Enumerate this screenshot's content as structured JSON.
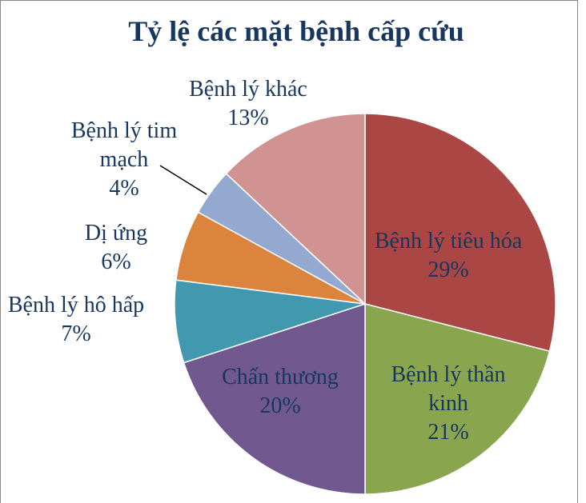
{
  "chart_data": {
    "type": "pie",
    "title": "Tỷ lệ các mặt bệnh cấp cứu",
    "categories": [
      "Bệnh lý tiêu hóa",
      "Bệnh lý thần kinh",
      "Chấn thương",
      "Bệnh lý hô hấp",
      "Dị ứng",
      "Bệnh lý tim mạch",
      "Bệnh lý khác"
    ],
    "values": [
      29,
      21,
      20,
      7,
      6,
      4,
      13
    ],
    "value_labels": [
      "29%",
      "21%",
      "20%",
      "7%",
      "6%",
      "4%",
      "13%"
    ],
    "colors": [
      "#aa4643",
      "#89a54e",
      "#71588f",
      "#4198af",
      "#db843d",
      "#93a9cf",
      "#d19392"
    ]
  }
}
